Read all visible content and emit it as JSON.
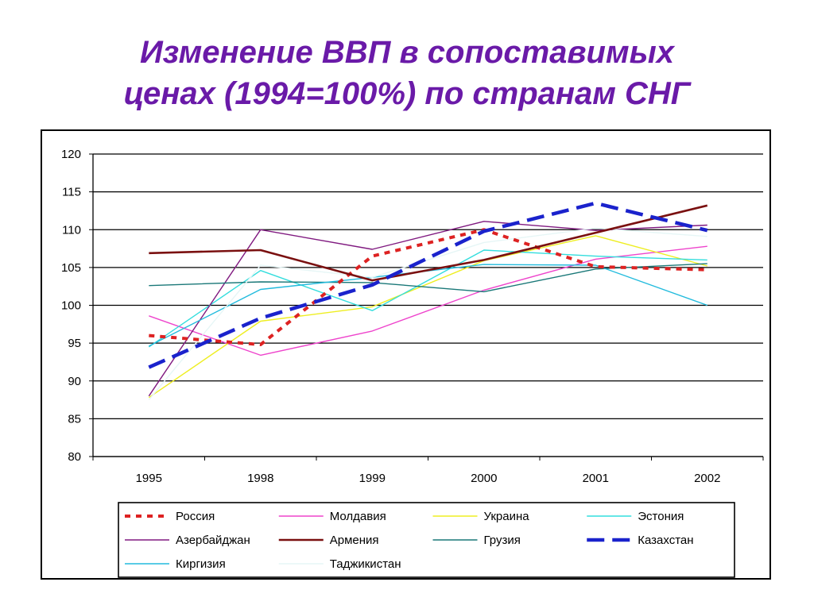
{
  "slide": {
    "title_line1": "Изменение ВВП в сопоставимых",
    "title_line2": "ценах (1994=100%) по странам СНГ"
  },
  "chart_data": {
    "type": "line",
    "title": "Изменение ВВП в сопоставимых ценах (1994=100%) по странам СНГ",
    "categories": [
      "1995",
      "1998",
      "1999",
      "2000",
      "2001",
      "2002"
    ],
    "ylim": [
      80,
      120
    ],
    "yticks": [
      80,
      85,
      90,
      95,
      100,
      105,
      110,
      115,
      120
    ],
    "grid": true,
    "legend_position": "bottom",
    "series": [
      {
        "name": "Россия",
        "values": [
          96,
          94.8,
          106.5,
          110,
          105.1,
          104.7
        ],
        "color": "#dd2222",
        "style": "dotted-thick"
      },
      {
        "name": "Молдавия",
        "values": [
          98.6,
          93.4,
          96.6,
          102,
          106.1,
          107.8
        ],
        "color": "#ee44cc",
        "style": "solid"
      },
      {
        "name": "Украина",
        "values": [
          87.8,
          97.9,
          99.8,
          105.9,
          109.2,
          105.2
        ],
        "color": "#eeee22",
        "style": "solid"
      },
      {
        "name": "Эстония",
        "values": [
          94.5,
          104.6,
          99.3,
          107.3,
          106.5,
          106
        ],
        "color": "#33dddd",
        "style": "solid"
      },
      {
        "name": "Азербайджан",
        "values": [
          88,
          110,
          107.4,
          111.1,
          109.9,
          110.6
        ],
        "color": "#801a80",
        "style": "solid"
      },
      {
        "name": "Армения",
        "values": [
          106.9,
          107.3,
          103.3,
          106,
          109.6,
          113.2
        ],
        "color": "#7a1010",
        "style": "solid-thick"
      },
      {
        "name": "Грузия",
        "values": [
          102.6,
          103.1,
          103,
          101.8,
          104.8,
          105.5
        ],
        "color": "#1a7878",
        "style": "solid"
      },
      {
        "name": "Казахстан",
        "values": [
          91.8,
          98.3,
          102.7,
          109.8,
          113.5,
          109.9
        ],
        "color": "#1a22cc",
        "style": "dashed-thick"
      },
      {
        "name": "Киргизия",
        "values": [
          94.6,
          102.1,
          103.7,
          105.4,
          105.3,
          100
        ],
        "color": "#22bbdd",
        "style": "solid"
      },
      {
        "name": "Таджикистан",
        "values": [
          87.5,
          105.3,
          103.7,
          108.3,
          110.2,
          109.1
        ],
        "color": "#e6f6f6",
        "style": "solid"
      }
    ]
  }
}
